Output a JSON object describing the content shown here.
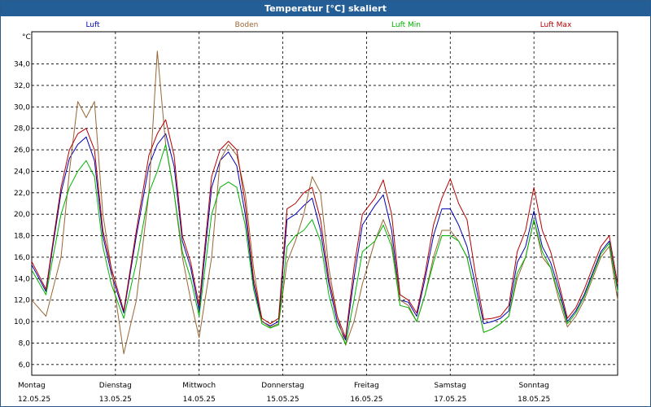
{
  "window": {
    "title": "Temperatur [°C] skaliert"
  },
  "chart_data": {
    "type": "line",
    "title": "Temperatur [°C] skaliert",
    "ylabel": "°C",
    "xlabel": "",
    "ylim": [
      5.0,
      37.0
    ],
    "yticks": [
      6.0,
      8.0,
      10.0,
      12.0,
      14.0,
      16.0,
      18.0,
      20.0,
      22.0,
      24.0,
      26.0,
      28.0,
      30.0,
      32.0,
      34.0
    ],
    "ytick_labels": [
      "6,0",
      "8,0",
      "10,0",
      "12,0",
      "14,0",
      "16,0",
      "18,0",
      "20,0",
      "22,0",
      "24,0",
      "26,0",
      "28,0",
      "30,0",
      "32,0",
      "34,0"
    ],
    "xlim": [
      0,
      7
    ],
    "grid": true,
    "legend": "top",
    "days": [
      {
        "name": "Montag",
        "date": "12.05.25"
      },
      {
        "name": "Dienstag",
        "date": "13.05.25"
      },
      {
        "name": "Mittwoch",
        "date": "14.05.25"
      },
      {
        "name": "Donnerstag",
        "date": "15.05.25"
      },
      {
        "name": "Freitag",
        "date": "16.05.25"
      },
      {
        "name": "Samstag",
        "date": "17.05.25"
      },
      {
        "name": "Sonntag",
        "date": "18.05.25"
      }
    ],
    "series": [
      {
        "name": "Luft",
        "color": "#0000b4",
        "x": [
          0.0,
          0.17,
          0.35,
          0.45,
          0.55,
          0.65,
          0.75,
          0.85,
          0.95,
          1.1,
          1.25,
          1.4,
          1.5,
          1.6,
          1.7,
          1.8,
          1.9,
          2.0,
          2.15,
          2.25,
          2.35,
          2.45,
          2.55,
          2.65,
          2.75,
          2.85,
          2.95,
          3.05,
          3.15,
          3.25,
          3.35,
          3.45,
          3.55,
          3.65,
          3.75,
          3.85,
          3.95,
          4.1,
          4.2,
          4.3,
          4.4,
          4.5,
          4.6,
          4.7,
          4.8,
          4.9,
          5.0,
          5.1,
          5.2,
          5.3,
          5.4,
          5.5,
          5.6,
          5.7,
          5.8,
          5.9,
          6.0,
          6.1,
          6.2,
          6.3,
          6.4,
          6.5,
          6.6,
          6.7,
          6.8,
          6.9,
          7.0
        ],
        "y": [
          15.3,
          12.8,
          22.0,
          25.2,
          26.5,
          27.2,
          25.0,
          18.0,
          14.5,
          10.8,
          18.0,
          24.5,
          26.5,
          27.5,
          24.5,
          17.5,
          15.0,
          11.0,
          22.5,
          25.0,
          25.8,
          24.5,
          20.0,
          13.5,
          10.0,
          9.6,
          10.0,
          19.5,
          20.0,
          20.8,
          21.5,
          18.5,
          13.5,
          10.0,
          8.3,
          14.0,
          19.0,
          20.8,
          21.8,
          18.5,
          12.0,
          11.8,
          10.5,
          14.0,
          18.0,
          20.5,
          20.5,
          19.0,
          17.0,
          13.5,
          9.8,
          10.0,
          10.3,
          11.0,
          15.5,
          17.0,
          20.3,
          17.0,
          15.5,
          13.0,
          10.0,
          11.0,
          12.5,
          14.5,
          16.5,
          17.5,
          13.0
        ]
      },
      {
        "name": "Boden",
        "color": "#996633",
        "x": [
          0.0,
          0.17,
          0.35,
          0.45,
          0.55,
          0.65,
          0.75,
          0.85,
          0.95,
          1.1,
          1.25,
          1.4,
          1.5,
          1.6,
          1.7,
          1.8,
          1.9,
          2.0,
          2.15,
          2.25,
          2.35,
          2.45,
          2.55,
          2.65,
          2.75,
          2.85,
          2.95,
          3.05,
          3.15,
          3.25,
          3.35,
          3.45,
          3.55,
          3.65,
          3.75,
          3.85,
          3.95,
          4.1,
          4.2,
          4.3,
          4.4,
          4.5,
          4.6,
          4.7,
          4.8,
          4.9,
          5.0,
          5.1,
          5.2,
          5.3,
          5.4,
          5.5,
          5.6,
          5.7,
          5.8,
          5.9,
          6.0,
          6.1,
          6.2,
          6.3,
          6.4,
          6.5,
          6.6,
          6.7,
          6.8,
          6.9,
          7.0
        ],
        "y": [
          12.0,
          10.5,
          16.0,
          24.0,
          30.5,
          29.0,
          30.5,
          20.0,
          15.0,
          7.0,
          12.0,
          22.0,
          35.2,
          26.5,
          22.0,
          16.0,
          12.0,
          8.5,
          16.0,
          25.0,
          26.5,
          25.5,
          22.0,
          15.0,
          10.0,
          9.5,
          9.8,
          15.5,
          17.5,
          20.0,
          23.5,
          22.0,
          15.0,
          10.5,
          7.8,
          10.0,
          13.5,
          17.5,
          19.5,
          17.5,
          12.0,
          11.5,
          10.0,
          12.5,
          16.0,
          18.5,
          18.5,
          17.5,
          16.0,
          12.5,
          9.0,
          9.3,
          9.8,
          10.5,
          14.0,
          16.0,
          19.5,
          16.0,
          15.0,
          12.0,
          9.5,
          10.5,
          12.0,
          14.0,
          16.0,
          17.0,
          12.0
        ]
      },
      {
        "name": "Luft Min",
        "color": "#00b400",
        "x": [
          0.0,
          0.17,
          0.35,
          0.45,
          0.55,
          0.65,
          0.75,
          0.85,
          0.95,
          1.1,
          1.25,
          1.4,
          1.5,
          1.6,
          1.7,
          1.8,
          1.9,
          2.0,
          2.15,
          2.25,
          2.35,
          2.45,
          2.55,
          2.65,
          2.75,
          2.85,
          2.95,
          3.05,
          3.15,
          3.25,
          3.35,
          3.45,
          3.55,
          3.65,
          3.75,
          3.85,
          3.95,
          4.1,
          4.2,
          4.3,
          4.4,
          4.5,
          4.6,
          4.7,
          4.8,
          4.9,
          5.0,
          5.1,
          5.2,
          5.3,
          5.4,
          5.5,
          5.6,
          5.7,
          5.8,
          5.9,
          6.0,
          6.1,
          6.2,
          6.3,
          6.4,
          6.5,
          6.6,
          6.7,
          6.8,
          6.9,
          7.0
        ],
        "y": [
          14.8,
          12.5,
          20.0,
          22.5,
          24.0,
          25.0,
          23.5,
          17.0,
          13.5,
          10.3,
          15.5,
          22.0,
          24.0,
          26.5,
          22.0,
          16.5,
          14.0,
          10.5,
          20.0,
          22.5,
          23.0,
          22.5,
          19.0,
          13.0,
          9.8,
          9.4,
          9.7,
          17.0,
          18.0,
          18.5,
          19.5,
          17.5,
          12.5,
          9.5,
          7.9,
          12.0,
          16.5,
          17.5,
          19.0,
          17.0,
          11.5,
          11.3,
          10.0,
          12.5,
          15.5,
          18.0,
          18.0,
          17.5,
          16.0,
          12.5,
          9.0,
          9.3,
          9.8,
          10.5,
          14.5,
          16.0,
          19.5,
          16.5,
          15.0,
          12.5,
          9.8,
          10.8,
          12.3,
          14.3,
          16.3,
          17.3,
          12.8
        ]
      },
      {
        "name": "Luft Max",
        "color": "#b40000",
        "x": [
          0.0,
          0.17,
          0.35,
          0.45,
          0.55,
          0.65,
          0.75,
          0.85,
          0.95,
          1.1,
          1.25,
          1.4,
          1.5,
          1.6,
          1.7,
          1.8,
          1.9,
          2.0,
          2.15,
          2.25,
          2.35,
          2.45,
          2.55,
          2.65,
          2.75,
          2.85,
          2.95,
          3.05,
          3.15,
          3.25,
          3.35,
          3.45,
          3.55,
          3.65,
          3.75,
          3.85,
          3.95,
          4.1,
          4.2,
          4.3,
          4.4,
          4.5,
          4.6,
          4.7,
          4.8,
          4.9,
          5.0,
          5.1,
          5.2,
          5.3,
          5.4,
          5.5,
          5.6,
          5.7,
          5.8,
          5.9,
          6.0,
          6.1,
          6.2,
          6.3,
          6.4,
          6.5,
          6.6,
          6.7,
          6.8,
          6.9,
          7.0
        ],
        "y": [
          15.6,
          13.0,
          22.5,
          26.0,
          27.5,
          28.0,
          26.0,
          18.5,
          15.0,
          11.0,
          18.5,
          25.5,
          27.5,
          28.8,
          25.5,
          18.0,
          15.5,
          11.5,
          23.5,
          26.0,
          26.8,
          26.0,
          21.0,
          14.0,
          10.3,
          9.8,
          10.3,
          20.5,
          21.0,
          22.0,
          22.5,
          19.5,
          14.0,
          10.5,
          8.5,
          15.0,
          20.0,
          21.5,
          23.2,
          20.0,
          12.5,
          12.0,
          10.8,
          14.5,
          19.0,
          21.5,
          23.3,
          21.0,
          19.5,
          14.5,
          10.2,
          10.3,
          10.5,
          11.5,
          16.5,
          18.5,
          22.5,
          18.5,
          16.5,
          13.5,
          10.3,
          11.3,
          13.0,
          15.0,
          17.0,
          18.0,
          13.5
        ]
      }
    ]
  }
}
